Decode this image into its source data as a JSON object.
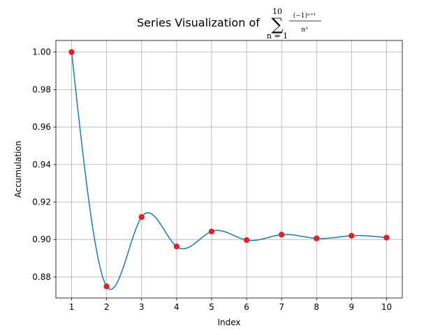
{
  "chart_data": {
    "type": "line",
    "title": {
      "prefix": "Series Visualization of",
      "sum_symbol": "∑",
      "upper_limit": "10",
      "lower_limit": "n = 1",
      "numerator": "(−1)ⁿ⁺¹",
      "denominator": "n³"
    },
    "xlabel": "Index",
    "ylabel": "Accumulation",
    "x": [
      1,
      2,
      3,
      4,
      5,
      6,
      7,
      8,
      9,
      10
    ],
    "series": [
      {
        "values": [
          1.0,
          0.875,
          0.912,
          0.8963,
          0.9043,
          0.8997,
          0.9026,
          0.9006,
          0.902,
          0.901
        ],
        "line_color": "#1f77b4",
        "marker_color": "#d62728",
        "smooth": true
      }
    ],
    "xlim": [
      0.55,
      10.45
    ],
    "ylim": [
      0.8688,
      1.0062
    ],
    "xticks": [
      1,
      2,
      3,
      4,
      5,
      6,
      7,
      8,
      9,
      10
    ],
    "yticks": [
      0.88,
      0.9,
      0.92,
      0.94,
      0.96,
      0.98,
      1.0
    ],
    "ytick_labels": [
      "0.88",
      "0.90",
      "0.92",
      "0.94",
      "0.96",
      "0.98",
      "1.00"
    ],
    "grid": true,
    "grid_color": "#b0b0b0"
  }
}
